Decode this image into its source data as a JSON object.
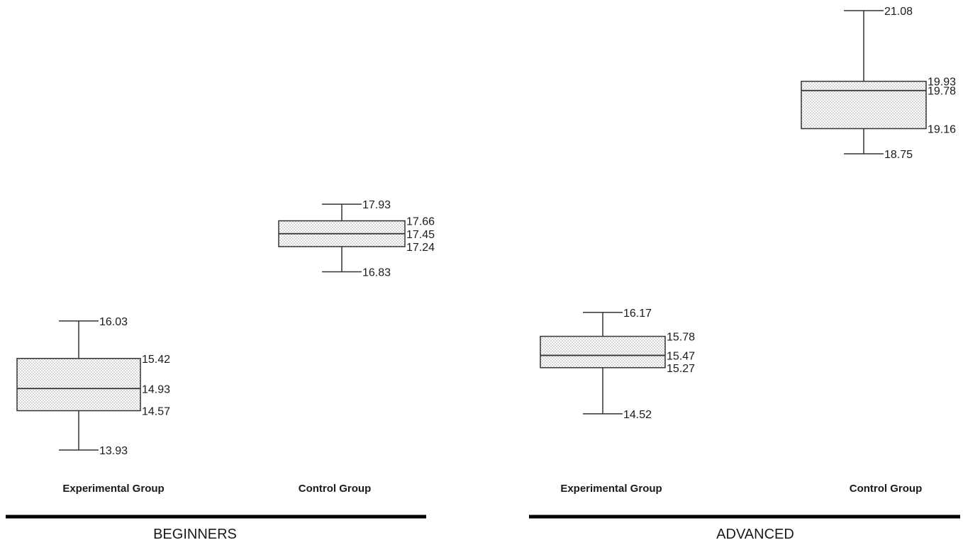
{
  "chart_data": {
    "type": "boxplot",
    "sections": [
      {
        "label": "BEGINNERS",
        "groups": [
          {
            "name": "Experimental Group",
            "max": 16.03,
            "q3": 15.42,
            "median": 14.93,
            "q1": 14.57,
            "min": 13.93
          },
          {
            "name": "Control Group",
            "max": 17.93,
            "q3": 17.66,
            "median": 17.45,
            "q1": 17.24,
            "min": 16.83
          }
        ]
      },
      {
        "label": "ADVANCED",
        "groups": [
          {
            "name": "Experimental Group",
            "max": 16.17,
            "q3": 15.78,
            "median": 15.47,
            "q1": 15.27,
            "min": 14.52
          },
          {
            "name": "Control Group",
            "max": 21.08,
            "q3": 19.93,
            "median": 19.78,
            "q1": 19.16,
            "min": 18.75
          }
        ]
      }
    ],
    "value_labels": "shown",
    "fill_pattern": "dotted",
    "gridlines": false,
    "axes": "hidden"
  }
}
